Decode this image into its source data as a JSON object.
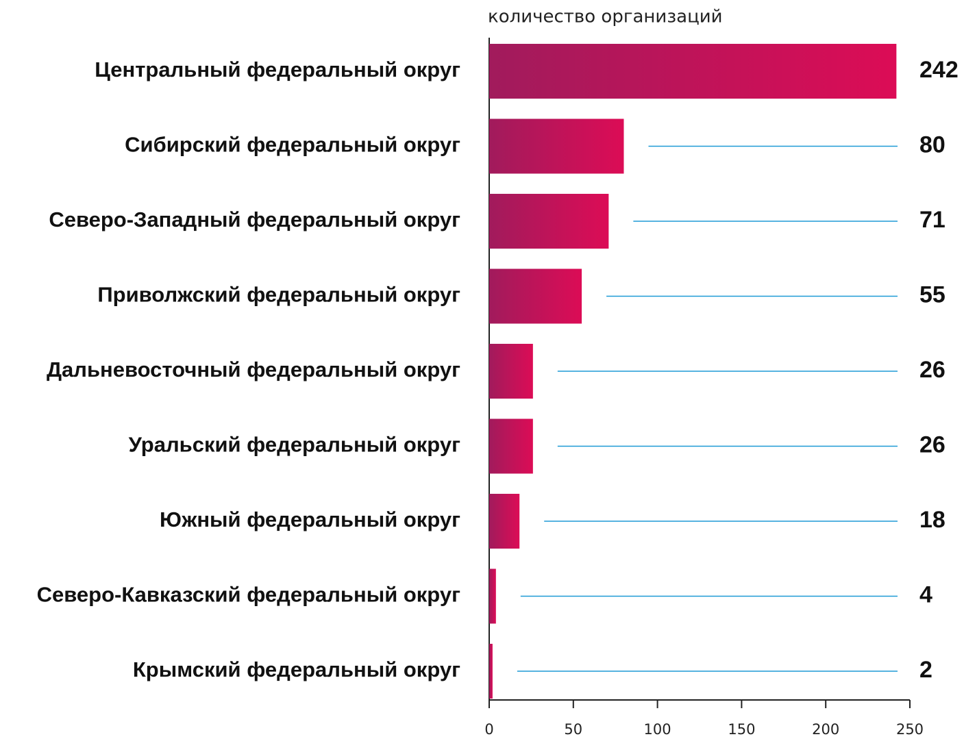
{
  "chart_data": {
    "type": "barh",
    "title": "количество организаций",
    "categories": [
      "Центральный федеральный округ",
      "Сибирский федеральный округ",
      "Северо-Западный федеральный округ",
      "Приволжский федеральный округ",
      "Дальневосточный федеральный округ",
      "Уральский федеральный округ",
      "Южный федеральный округ",
      "Северо-Кавказский федеральный округ",
      "Крымский федеральный округ"
    ],
    "values": [
      242,
      80,
      71,
      55,
      26,
      26,
      18,
      4,
      2
    ],
    "colors": [
      "#a11b5c",
      "#dc0c56"
    ],
    "xlim": [
      0,
      250
    ],
    "xticks": [
      0,
      50,
      100,
      150,
      200,
      250
    ],
    "grid": false
  }
}
